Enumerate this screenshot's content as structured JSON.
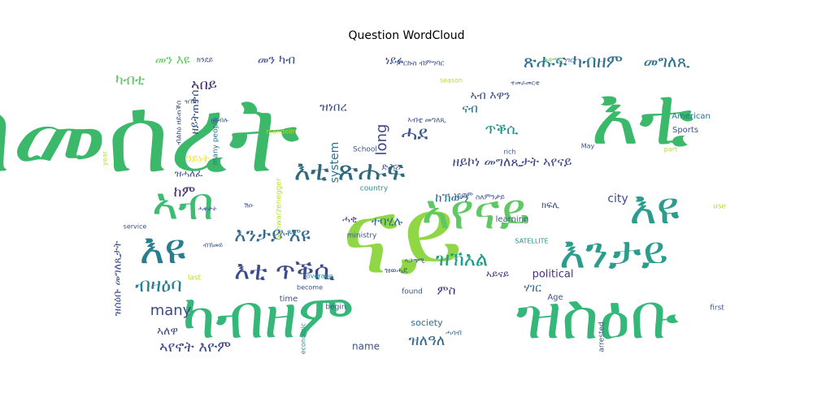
{
  "chart_data": {
    "type": "wordcloud",
    "title": "Question WordCloud",
    "palette": "viridis",
    "words": [
      {
        "text": "ብመሰረት",
        "weight": 100,
        "color": "#3bb86a",
        "rot": 0
      },
      {
        "text": "እቲ",
        "weight": 96,
        "color": "#3bb86a",
        "rot": 0
      },
      {
        "text": "ናይ",
        "weight": 98,
        "color": "#8fd744",
        "rot": 0
      },
      {
        "text": "ካብዘም",
        "weight": 92,
        "color": "#35b779",
        "rot": 0
      },
      {
        "text": "ዝስዕቡ",
        "weight": 90,
        "color": "#35b779",
        "rot": 0
      },
      {
        "text": "ኣየናይ",
        "weight": 70,
        "color": "#5ec962",
        "rot": 0
      },
      {
        "text": "እዩ",
        "weight": 66,
        "color": "#2a9d8c",
        "rot": 0
      },
      {
        "text": "እንታይ",
        "weight": 64,
        "color": "#2a9d8c",
        "rot": 0
      },
      {
        "text": "ኣብ",
        "weight": 60,
        "color": "#3fbc73",
        "rot": 0
      },
      {
        "text": "እዩ",
        "weight": 52,
        "color": "#287d8e",
        "rot": 0
      },
      {
        "text": "እቲ ጽሑፍ",
        "weight": 40,
        "color": "#30687e",
        "rot": 0
      },
      {
        "text": "እቲ ጥቕሲ",
        "weight": 38,
        "color": "#3e4a89",
        "rot": 0
      },
      {
        "text": "እንታይ እዩ",
        "weight": 32,
        "color": "#31688e",
        "rot": 0
      },
      {
        "text": "ብዛዕባ",
        "weight": 28,
        "color": "#26828e",
        "rot": 0
      },
      {
        "text": "ዝኽእል",
        "weight": 30,
        "color": "#1f9e89",
        "rot": 0
      },
      {
        "text": "ሓደ",
        "weight": 28,
        "color": "#3b528b",
        "rot": 0
      },
      {
        "text": "ጽሑፍ ካብዘም",
        "weight": 26,
        "color": "#2c728e",
        "rot": 0
      },
      {
        "text": "መግለጺ",
        "weight": 22,
        "color": "#2c728e",
        "rot": 0
      },
      {
        "text": "ዘይኮነ መግለጺታት ኣየናይ",
        "weight": 20,
        "color": "#3e4989",
        "rot": 0
      },
      {
        "text": "ኣየኖት እዮም",
        "weight": 22,
        "color": "#3e4989",
        "rot": 0
      },
      {
        "text": "ዝለዓለ",
        "weight": 20,
        "color": "#31688e",
        "rot": 0
      },
      {
        "text": "many",
        "weight": 22,
        "color": "#3e4989",
        "rot": 0
      },
      {
        "text": "ካብቲ",
        "weight": 20,
        "color": "#5ec962",
        "rot": 0
      },
      {
        "text": "ከም",
        "weight": 20,
        "color": "#46337e",
        "rot": 0
      },
      {
        "text": "ጥቕሲ",
        "weight": 18,
        "color": "#21918c",
        "rot": 0
      },
      {
        "text": "ምስ",
        "weight": 18,
        "color": "#46337e",
        "rot": 0
      },
      {
        "text": "ሃገር",
        "weight": 16,
        "color": "#31688e",
        "rot": 0
      },
      {
        "text": "መን እዩ",
        "weight": 16,
        "color": "#5ec962",
        "rot": 0
      },
      {
        "text": "መን ካብ",
        "weight": 16,
        "color": "#3b528b",
        "rot": 0
      },
      {
        "text": "ነይሩ",
        "weight": 15,
        "color": "#3b528b",
        "rot": 0
      },
      {
        "text": "ዝነበረ",
        "weight": 15,
        "color": "#3b528b",
        "rot": 0
      },
      {
        "text": "ኣብ እዋን",
        "weight": 15,
        "color": "#3b528b",
        "rot": 0
      },
      {
        "text": "city",
        "weight": 14,
        "color": "#3e4989",
        "rot": 0
      },
      {
        "text": "system",
        "weight": 13,
        "color": "#2c728e",
        "rot": 90
      },
      {
        "text": "long",
        "weight": 16,
        "color": "#3e4989",
        "rot": 90
      },
      {
        "text": "political",
        "weight": 13,
        "color": "#46337e",
        "rot": 0
      },
      {
        "text": "name",
        "weight": 12,
        "color": "#3b528b",
        "rot": 0
      },
      {
        "text": "society",
        "weight": 10,
        "color": "#31688e",
        "rot": 0
      },
      {
        "text": "Age",
        "weight": 9,
        "color": "#3b528b",
        "rot": 0
      },
      {
        "text": "time",
        "weight": 9,
        "color": "#3b528b",
        "rot": 0
      },
      {
        "text": "Sports",
        "weight": 9,
        "color": "#3b528b",
        "rot": 0
      },
      {
        "text": "American",
        "weight": 8,
        "color": "#2c728e",
        "rot": 0
      },
      {
        "text": "learning",
        "weight": 8,
        "color": "#3b528b",
        "rot": 0
      },
      {
        "text": "School",
        "weight": 8,
        "color": "#3b528b",
        "rot": 0
      },
      {
        "text": "ministry",
        "weight": 8,
        "color": "#3b528b",
        "rot": 0
      },
      {
        "text": "country",
        "weight": 7,
        "color": "#21918c",
        "rot": 0
      },
      {
        "text": "SATELLITE",
        "weight": 7,
        "color": "#21918c",
        "rot": 0
      },
      {
        "text": "Schwarzenegger",
        "weight": 8,
        "color": "#b5de2b",
        "rot": 90
      },
      {
        "text": "many people",
        "weight": 8,
        "color": "#2c728e",
        "rot": 90
      },
      {
        "text": "arrested",
        "weight": 8,
        "color": "#3b528b",
        "rot": 90
      },
      {
        "text": "economic",
        "weight": 7,
        "color": "#21918c",
        "rot": 90
      },
      {
        "text": "mandolin",
        "weight": 7,
        "color": "#b5de2b",
        "rot": 0
      },
      {
        "text": "begin",
        "weight": 8,
        "color": "#3b528b",
        "rot": 0
      },
      {
        "text": "become",
        "weight": 7,
        "color": "#3b528b",
        "rot": 0
      },
      {
        "text": "coverage",
        "weight": 7,
        "color": "#21918c",
        "rot": 0
      },
      {
        "text": "found",
        "weight": 8,
        "color": "#3b528b",
        "rot": 0
      },
      {
        "text": "first",
        "weight": 8,
        "color": "#3b528b",
        "rot": 0
      },
      {
        "text": "use",
        "weight": 8,
        "color": "#b5de2b",
        "rot": 0
      },
      {
        "text": "last",
        "weight": 8,
        "color": "#b5de2b",
        "rot": 0
      },
      {
        "text": "service",
        "weight": 7,
        "color": "#3b528b",
        "rot": 0
      },
      {
        "text": "season",
        "weight": 7,
        "color": "#b5de2b",
        "rot": 0
      },
      {
        "text": "part",
        "weight": 7,
        "color": "#b5de2b",
        "rot": 0
      },
      {
        "text": "rich",
        "weight": 7,
        "color": "#3b528b",
        "rot": 0
      },
      {
        "text": "May",
        "weight": 7,
        "color": "#3b528b",
        "rot": 0
      },
      {
        "text": "year",
        "weight": 7,
        "color": "#b5de2b",
        "rot": 90
      },
      {
        "text": "ዝሓለፈ",
        "weight": 10,
        "color": "#3b528b",
        "rot": 0
      },
      {
        "text": "ዓይነት",
        "weight": 10,
        "color": "#fde725",
        "rot": 0
      },
      {
        "text": "ናብ",
        "weight": 12,
        "color": "#2c728e",
        "rot": 0
      },
      {
        "text": "ከኽውን",
        "weight": 12,
        "color": "#2c728e",
        "rot": 0
      },
      {
        "text": "ተባሂሉ",
        "weight": 10,
        "color": "#2c728e",
        "rot": 0
      },
      {
        "text": "እቶም",
        "weight": 9,
        "color": "#2c728e",
        "rot": 0
      },
      {
        "text": "ሓቂ",
        "weight": 9,
        "color": "#46337e",
        "rot": 0
      },
      {
        "text": "ዝወሓደ",
        "weight": 8,
        "color": "#3b528b",
        "rot": 0
      },
      {
        "text": "ኣብቲ መግለጺ",
        "weight": 9,
        "color": "#3b528b",
        "rot": 0
      },
      {
        "text": "ኣይናይ",
        "weight": 10,
        "color": "#46337e",
        "rot": 0
      },
      {
        "text": "ሓሳብ",
        "weight": 8,
        "color": "#2c728e",
        "rot": 0
      },
      {
        "text": "ኣለዋ",
        "weight": 10,
        "color": "#3b528b",
        "rot": 0
      },
      {
        "text": "ኣጋጣሚ",
        "weight": 8,
        "color": "#3b528b",
        "rot": 0
      },
      {
        "text": "ነገር",
        "weight": 8,
        "color": "#3b528b",
        "rot": 0
      },
      {
        "text": "ክፍሊ",
        "weight": 8,
        "color": "#3b528b",
        "rot": 0
      },
      {
        "text": "ስለምንታይ",
        "weight": 8,
        "color": "#3b528b",
        "rot": 0
      },
      {
        "text": "ነይሮም",
        "weight": 8,
        "color": "#3b528b",
        "rot": 0
      },
      {
        "text": "ድሕሪ",
        "weight": 8,
        "color": "#3b528b",
        "rot": 0
      },
      {
        "text": "ኣበይ",
        "weight": 12,
        "color": "#46337e",
        "rot": 0
      },
      {
        "text": "ዘይትጠቀሰ",
        "weight": 9,
        "color": "#3b528b",
        "rot": 90
      },
      {
        "text": "ብልክዕ ዘይጠቕሰ",
        "weight": 8,
        "color": "#3b528b",
        "rot": 90
      },
      {
        "text": "ዝሰዕቡ መግለጺታት",
        "weight": 10,
        "color": "#3b528b",
        "rot": 90
      },
      {
        "text": "ቀዳማይ",
        "weight": 7,
        "color": "#5ec962",
        "rot": 0
      },
      {
        "text": "ምርኩስ ብምግባር",
        "weight": 8,
        "color": "#3b528b",
        "rot": 0
      },
      {
        "text": "ክንደይ",
        "weight": 8,
        "color": "#3b528b",
        "rot": 0
      },
      {
        "text": "ዘይብሉ",
        "weight": 8,
        "color": "#3b528b",
        "rot": 0
      },
      {
        "text": "ዝዀነ",
        "weight": 7,
        "color": "#3b528b",
        "rot": 0
      },
      {
        "text": "ብኸመይ",
        "weight": 7,
        "color": "#3b528b",
        "rot": 0
      },
      {
        "text": "ሓቅታት",
        "weight": 7,
        "color": "#3b528b",
        "rot": 0
      },
      {
        "text": "ተመራመርቲ",
        "weight": 8,
        "color": "#3b528b",
        "rot": 0
      },
      {
        "text": "ሽዑ",
        "weight": 7,
        "color": "#3b528b",
        "rot": 0
      }
    ]
  }
}
